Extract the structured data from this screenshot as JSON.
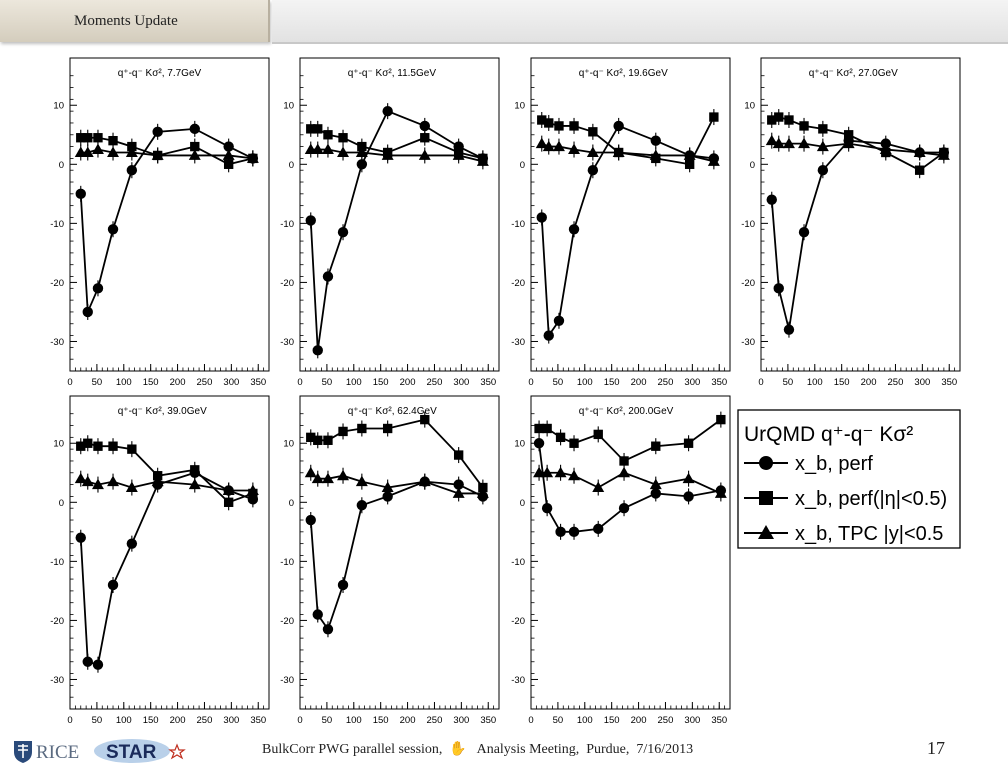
{
  "header": {
    "title": "Moments Update"
  },
  "footer": {
    "logos": [
      "RICE",
      "STAR"
    ],
    "text": "BulkCorr PWG parallel session,  ✋   Analysis Meeting,  Purdue,  7/16/2013",
    "page_number": "17"
  },
  "legend": {
    "title": "UrQMD q⁺-q⁻ Kσ²",
    "entries": [
      {
        "label": "x_b, perf",
        "marker": "circle"
      },
      {
        "label": "x_b, perf(|η|<0.5)",
        "marker": "square"
      },
      {
        "label": "x_b, TPC |y|<0.5",
        "marker": "triangle"
      }
    ]
  },
  "chart_data": [
    {
      "type": "line",
      "title": "q⁺-q⁻ Kσ²,  7.7GeV",
      "xlim": [
        0,
        370
      ],
      "ylim": [
        -35,
        18
      ],
      "xticks": [
        0,
        50,
        100,
        150,
        200,
        250,
        300,
        350
      ],
      "yticks": [
        -30,
        -20,
        -10,
        0,
        10
      ],
      "series": [
        {
          "marker": "circle",
          "x": [
            20,
            33,
            52,
            80,
            115,
            163,
            232,
            295,
            340
          ],
          "y": [
            -5,
            -25,
            -21,
            -11,
            -1,
            5.5,
            6,
            3,
            1
          ]
        },
        {
          "marker": "square",
          "x": [
            20,
            33,
            52,
            80,
            115,
            163,
            232,
            295,
            340
          ],
          "y": [
            4.5,
            4.5,
            4.5,
            4,
            3,
            1.5,
            3,
            0,
            1
          ]
        },
        {
          "marker": "triangle",
          "x": [
            20,
            33,
            52,
            80,
            115,
            163,
            232,
            295,
            340
          ],
          "y": [
            2,
            2,
            2.5,
            2,
            2,
            1.5,
            1.5,
            1.5,
            1
          ]
        }
      ]
    },
    {
      "type": "line",
      "title": "q⁺-q⁻ Kσ², 11.5GeV",
      "xlim": [
        0,
        370
      ],
      "ylim": [
        -35,
        18
      ],
      "xticks": [
        0,
        50,
        100,
        150,
        200,
        250,
        300,
        350
      ],
      "yticks": [
        -30,
        -20,
        -10,
        0,
        10
      ],
      "series": [
        {
          "marker": "circle",
          "x": [
            20,
            33,
            52,
            80,
            115,
            163,
            232,
            295,
            340
          ],
          "y": [
            -9.5,
            -31.5,
            -19,
            -11.5,
            0,
            9,
            6.5,
            3,
            1
          ]
        },
        {
          "marker": "square",
          "x": [
            20,
            33,
            52,
            80,
            115,
            163,
            232,
            295,
            340
          ],
          "y": [
            6,
            6,
            5,
            4.5,
            3,
            2,
            4.5,
            2,
            1
          ]
        },
        {
          "marker": "triangle",
          "x": [
            20,
            33,
            52,
            80,
            115,
            163,
            232,
            295,
            340
          ],
          "y": [
            2.5,
            2.5,
            2.5,
            2,
            2,
            1.5,
            1.5,
            1.5,
            0.5
          ]
        }
      ]
    },
    {
      "type": "line",
      "title": "q⁺-q⁻ Kσ², 19.6GeV",
      "xlim": [
        0,
        370
      ],
      "ylim": [
        -35,
        18
      ],
      "xticks": [
        0,
        50,
        100,
        150,
        200,
        250,
        300,
        350
      ],
      "yticks": [
        -30,
        -20,
        -10,
        0,
        10
      ],
      "series": [
        {
          "marker": "circle",
          "x": [
            20,
            33,
            52,
            80,
            115,
            163,
            232,
            295,
            340
          ],
          "y": [
            -9,
            -29,
            -26.5,
            -11,
            -1,
            6.5,
            4,
            1.5,
            1
          ]
        },
        {
          "marker": "square",
          "x": [
            20,
            33,
            52,
            80,
            115,
            163,
            232,
            295,
            340
          ],
          "y": [
            7.5,
            7,
            6.5,
            6.5,
            5.5,
            2,
            1,
            0,
            8
          ]
        },
        {
          "marker": "triangle",
          "x": [
            20,
            33,
            52,
            80,
            115,
            163,
            232,
            295,
            340
          ],
          "y": [
            3.5,
            3,
            3,
            2.5,
            2,
            2,
            1.5,
            1.5,
            0.5
          ]
        }
      ]
    },
    {
      "type": "line",
      "title": "q⁺-q⁻ Kσ², 27.0GeV",
      "xlim": [
        0,
        370
      ],
      "ylim": [
        -35,
        18
      ],
      "xticks": [
        0,
        50,
        100,
        150,
        200,
        250,
        300,
        350
      ],
      "yticks": [
        -30,
        -20,
        -10,
        0,
        10
      ],
      "series": [
        {
          "marker": "circle",
          "x": [
            20,
            33,
            52,
            80,
            115,
            163,
            232,
            295,
            340
          ],
          "y": [
            -6,
            -21,
            -28,
            -11.5,
            -1,
            4,
            3.5,
            2,
            2
          ]
        },
        {
          "marker": "square",
          "x": [
            20,
            33,
            52,
            80,
            115,
            163,
            232,
            295,
            340
          ],
          "y": [
            7.5,
            8,
            7.5,
            6.5,
            6,
            5,
            2,
            -1,
            2
          ]
        },
        {
          "marker": "triangle",
          "x": [
            20,
            33,
            52,
            80,
            115,
            163,
            232,
            295,
            340
          ],
          "y": [
            4,
            3.5,
            3.5,
            3.5,
            3,
            3.5,
            2.5,
            2,
            1.5
          ]
        }
      ]
    },
    {
      "type": "line",
      "title": "q⁺-q⁻ Kσ², 39.0GeV",
      "xlim": [
        0,
        370
      ],
      "ylim": [
        -35,
        18
      ],
      "xticks": [
        0,
        50,
        100,
        150,
        200,
        250,
        300,
        350
      ],
      "yticks": [
        -30,
        -20,
        -10,
        0,
        10
      ],
      "series": [
        {
          "marker": "circle",
          "x": [
            20,
            33,
            52,
            80,
            115,
            163,
            232,
            295,
            340
          ],
          "y": [
            -6,
            -27,
            -27.5,
            -14,
            -7,
            3,
            5,
            2,
            0.5
          ]
        },
        {
          "marker": "square",
          "x": [
            20,
            33,
            52,
            80,
            115,
            163,
            232,
            295,
            340
          ],
          "y": [
            9.5,
            10,
            9.5,
            9.5,
            9,
            4.5,
            5.5,
            0,
            1.5
          ]
        },
        {
          "marker": "triangle",
          "x": [
            20,
            33,
            52,
            80,
            115,
            163,
            232,
            295,
            340
          ],
          "y": [
            4,
            3.5,
            3,
            3.5,
            2.5,
            3.5,
            3,
            2,
            2
          ]
        }
      ]
    },
    {
      "type": "line",
      "title": "q⁺-q⁻ Kσ², 62.4GeV",
      "xlim": [
        0,
        370
      ],
      "ylim": [
        -35,
        18
      ],
      "xticks": [
        0,
        50,
        100,
        150,
        200,
        250,
        300,
        350
      ],
      "yticks": [
        -30,
        -20,
        -10,
        0,
        10
      ],
      "series": [
        {
          "marker": "circle",
          "x": [
            20,
            33,
            52,
            80,
            115,
            163,
            232,
            295,
            340
          ],
          "y": [
            -3,
            -19,
            -21.5,
            -14,
            -0.5,
            1,
            3.5,
            3,
            1
          ]
        },
        {
          "marker": "square",
          "x": [
            20,
            33,
            52,
            80,
            115,
            163,
            232,
            295,
            340
          ],
          "y": [
            11,
            10.5,
            10.5,
            12,
            12.5,
            12.5,
            14,
            8,
            2.5
          ]
        },
        {
          "marker": "triangle",
          "x": [
            20,
            33,
            52,
            80,
            115,
            163,
            232,
            295,
            340
          ],
          "y": [
            5,
            4,
            4,
            4.5,
            3.5,
            2.5,
            3.5,
            1.5,
            1.5
          ]
        }
      ]
    },
    {
      "type": "line",
      "title": "q⁺-q⁻ Kσ², 200.0GeV",
      "xlim": [
        0,
        370
      ],
      "ylim": [
        -35,
        18
      ],
      "xticks": [
        0,
        50,
        100,
        150,
        200,
        250,
        300,
        350
      ],
      "yticks": [
        -30,
        -20,
        -10,
        0,
        10
      ],
      "series": [
        {
          "marker": "circle",
          "x": [
            15,
            30,
            55,
            80,
            125,
            173,
            232,
            293,
            353
          ],
          "y": [
            10,
            -1,
            -5,
            -5,
            -4.5,
            -1,
            1.5,
            1,
            2
          ]
        },
        {
          "marker": "square",
          "x": [
            15,
            30,
            55,
            80,
            125,
            173,
            232,
            293,
            353
          ],
          "y": [
            12.5,
            12.5,
            11,
            10,
            11.5,
            7,
            9.5,
            10,
            14
          ]
        },
        {
          "marker": "triangle",
          "x": [
            15,
            30,
            55,
            80,
            125,
            173,
            232,
            293,
            353
          ],
          "y": [
            5,
            5,
            5,
            4.5,
            2.5,
            5,
            3,
            4,
            1.5
          ]
        }
      ]
    }
  ]
}
